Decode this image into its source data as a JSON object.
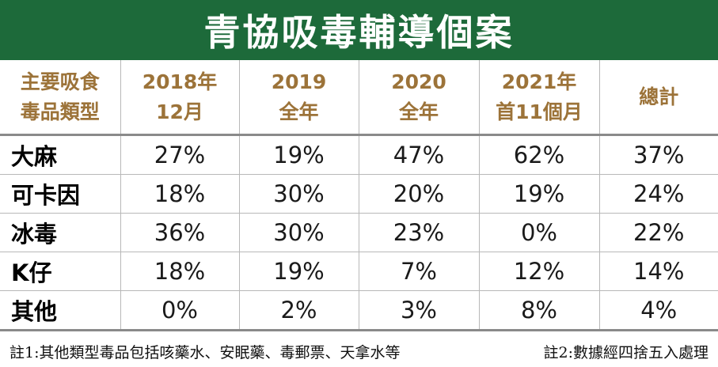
{
  "title": "青協吸毒輔導個案",
  "table": {
    "corner_header": [
      "主要吸食",
      "毒品類型"
    ],
    "column_headers": [
      [
        "2018年",
        "12月"
      ],
      [
        "2019",
        "全年"
      ],
      [
        "2020",
        "全年"
      ],
      [
        "2021年",
        "首11個月"
      ],
      [
        "總計",
        ""
      ]
    ],
    "rows": [
      {
        "label": "大麻",
        "values": [
          "27%",
          "19%",
          "47%",
          "62%",
          "37%"
        ]
      },
      {
        "label": "可卡因",
        "values": [
          "18%",
          "30%",
          "20%",
          "19%",
          "24%"
        ]
      },
      {
        "label": "冰毒",
        "values": [
          "36%",
          "30%",
          "23%",
          "0%",
          "22%"
        ]
      },
      {
        "label": "K仔",
        "values": [
          "18%",
          "19%",
          "7%",
          "12%",
          "14%"
        ]
      },
      {
        "label": "其他",
        "values": [
          "0%",
          "2%",
          "3%",
          "8%",
          "4%"
        ]
      }
    ]
  },
  "notes": {
    "note1": "註1:其他類型毒品包括咳藥水、安眠藥、毒郵票、天拿水等",
    "note2": "註2:數據經四捨五入處理"
  },
  "colors": {
    "title_bar": "#1d6a3a",
    "header_text": "#9c7339",
    "grid_line": "#b8b8b8"
  }
}
